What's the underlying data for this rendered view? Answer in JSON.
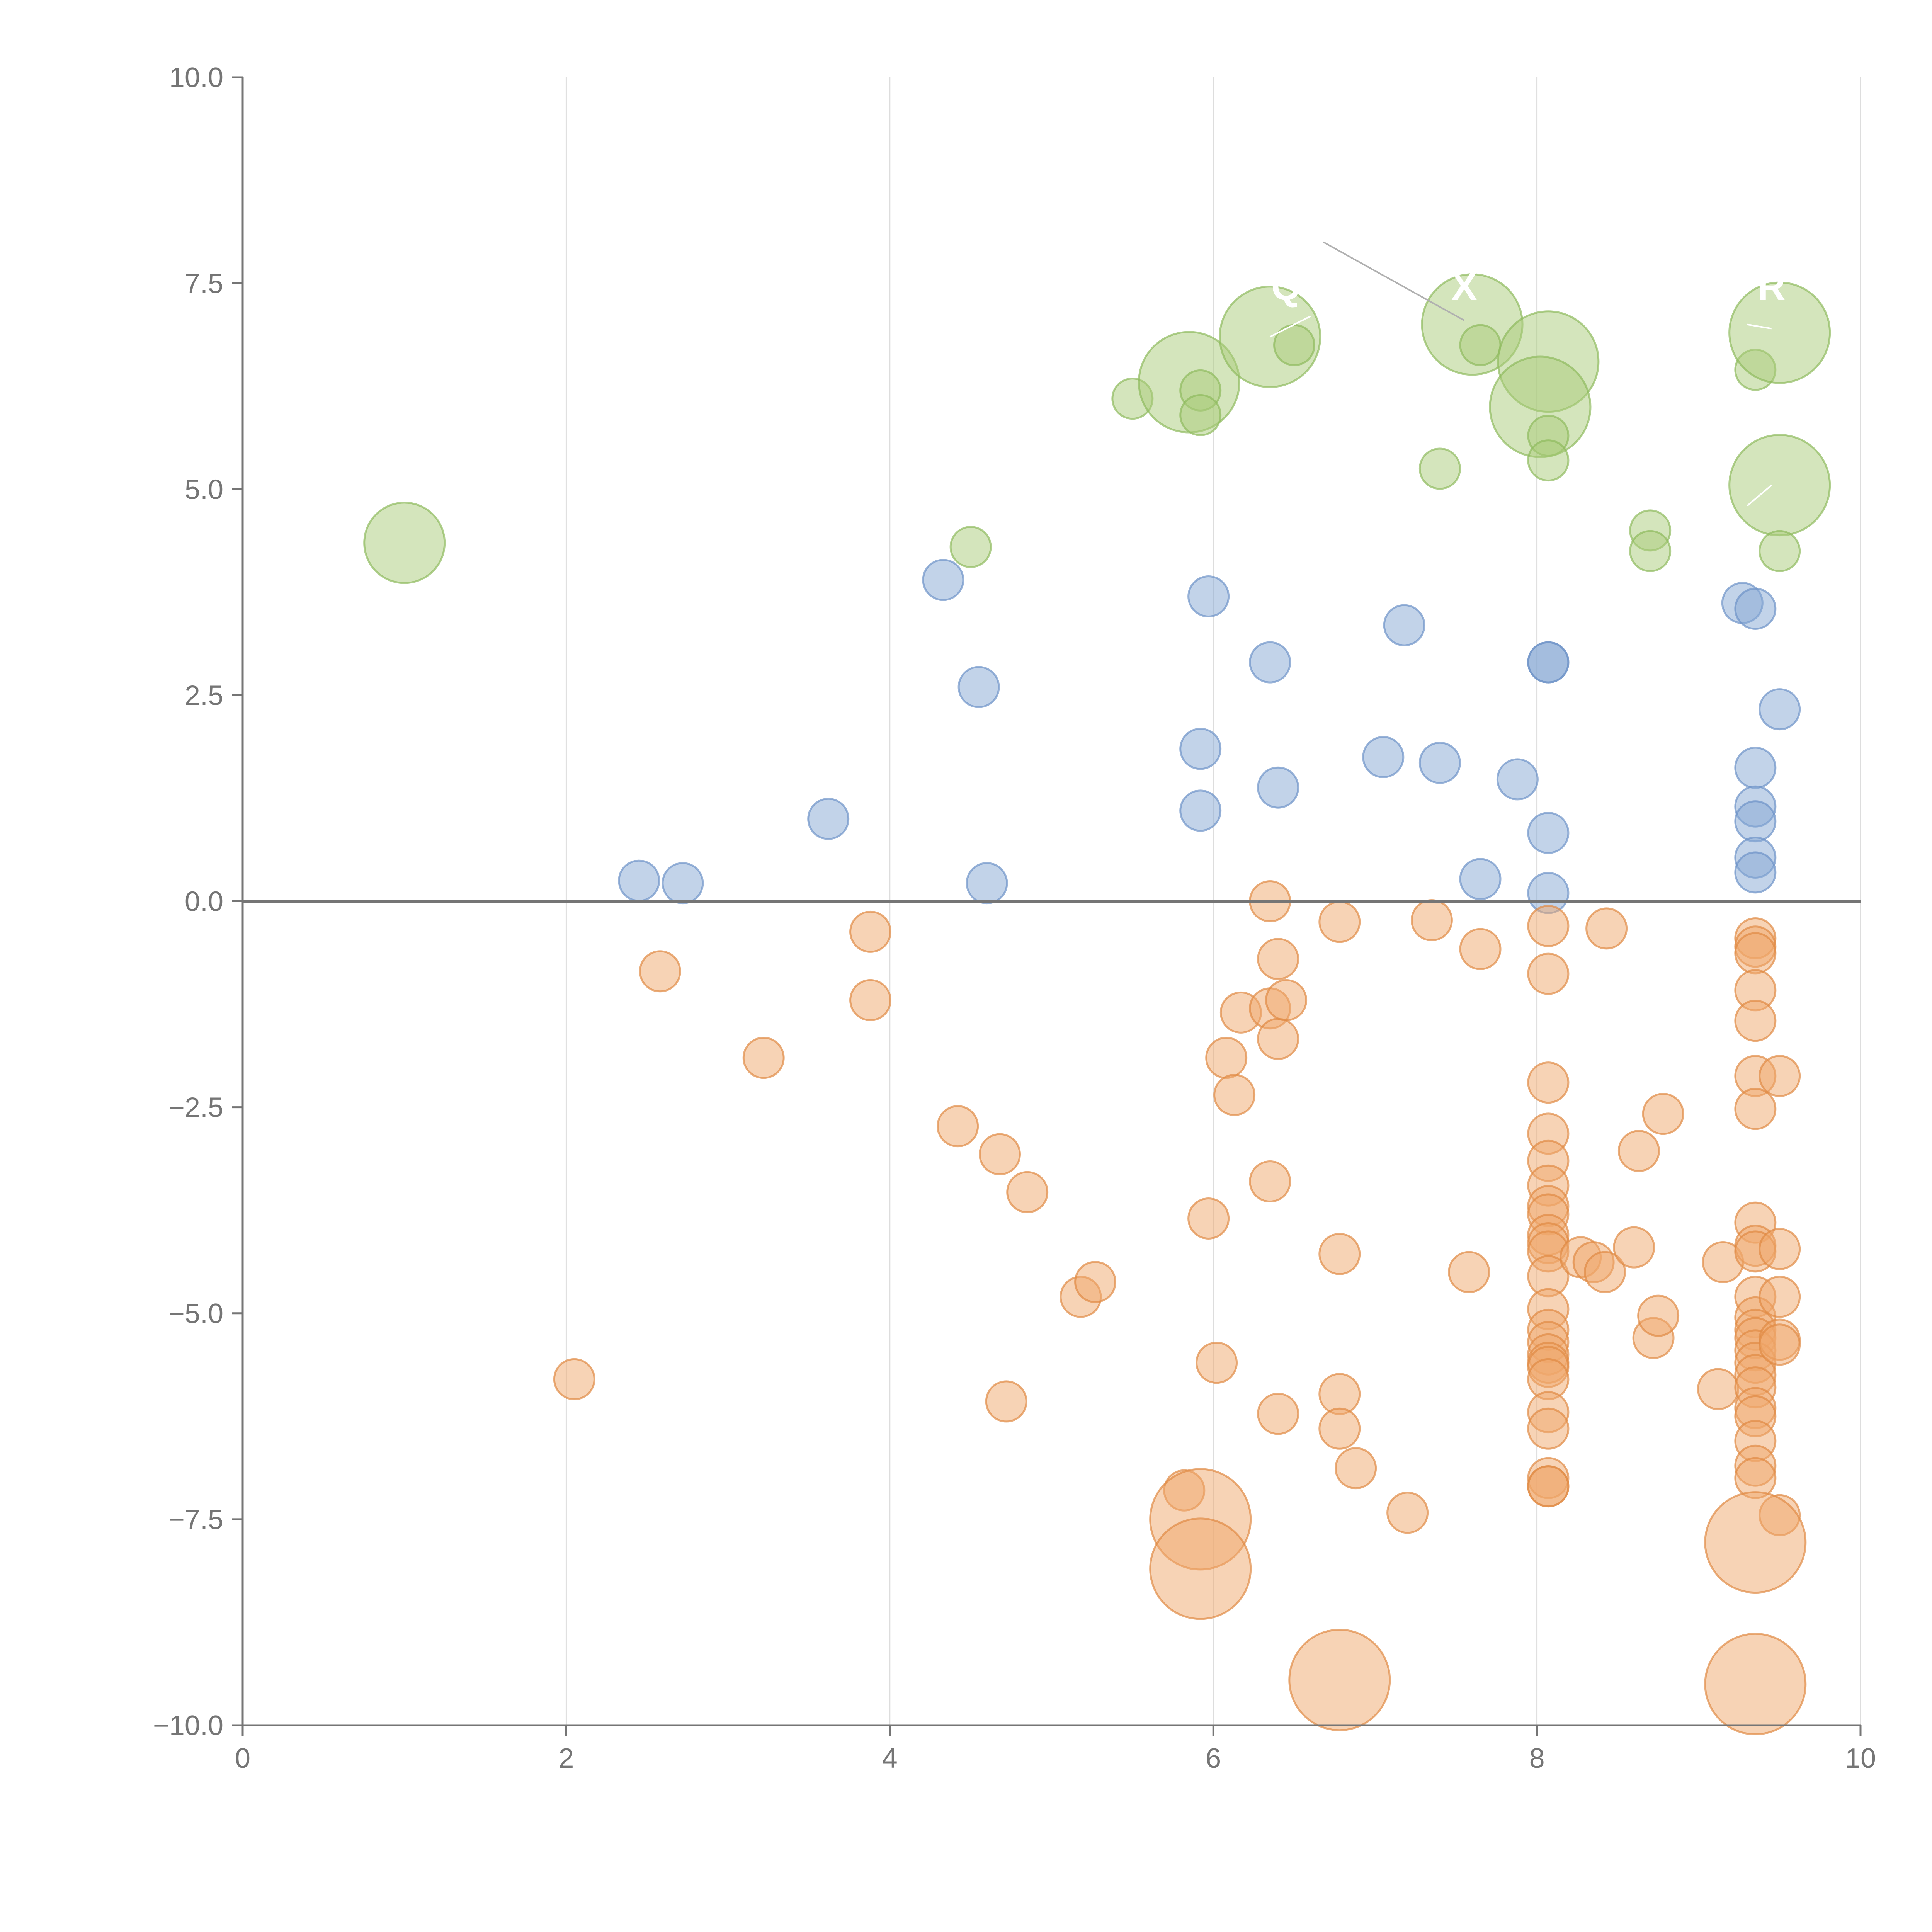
{
  "chart_data": {
    "type": "scatter",
    "title": "",
    "xlabel": "",
    "ylabel": "",
    "xlim": [
      0,
      10
    ],
    "ylim": [
      -10,
      10
    ],
    "grid": "vertical",
    "x_ticks": [
      {
        "value": 0,
        "label": "0"
      },
      {
        "value": 2,
        "label": "2"
      },
      {
        "value": 4,
        "label": "4"
      },
      {
        "value": 6,
        "label": "6"
      },
      {
        "value": 8,
        "label": "8"
      },
      {
        "value": 10,
        "label": "10"
      }
    ],
    "y_ticks": [
      {
        "value": 10,
        "label": "10.0"
      },
      {
        "value": 7.5,
        "label": "7.5"
      },
      {
        "value": 5,
        "label": "5.0"
      },
      {
        "value": 2.5,
        "label": "2.5"
      },
      {
        "value": 0,
        "label": "0.0"
      },
      {
        "value": -2.5,
        "label": "−2.5"
      },
      {
        "value": -5,
        "label": "−5.0"
      },
      {
        "value": -7.5,
        "label": "−7.5"
      },
      {
        "value": -10,
        "label": "−10.0"
      }
    ],
    "series": [
      {
        "name": "green",
        "fill": "#a9cc7a",
        "stroke": "#8fbb5e",
        "points": [
          [
            1.0,
            4.35,
            2
          ],
          [
            4.5,
            4.3,
            1
          ],
          [
            5.5,
            6.1,
            1
          ],
          [
            5.85,
            6.3,
            2.5
          ],
          [
            5.92,
            6.2,
            1
          ],
          [
            5.92,
            5.9,
            1
          ],
          [
            6.35,
            6.85,
            2.5
          ],
          [
            6.5,
            6.75,
            1
          ],
          [
            7.4,
            5.25,
            1
          ],
          [
            7.6,
            7.0,
            2.5
          ],
          [
            7.65,
            6.75,
            1
          ],
          [
            8.07,
            6.55,
            2.5
          ],
          [
            8.02,
            6.0,
            2.5
          ],
          [
            8.07,
            5.65,
            1
          ],
          [
            8.07,
            5.35,
            1
          ],
          [
            8.7,
            4.5,
            1
          ],
          [
            8.7,
            4.25,
            1
          ],
          [
            9.35,
            6.45,
            1
          ],
          [
            9.5,
            6.9,
            2.5
          ],
          [
            9.5,
            5.05,
            2.5
          ],
          [
            9.5,
            4.25,
            1
          ]
        ]
      },
      {
        "name": "blue",
        "fill": "#86a8d4",
        "stroke": "#6e93c7",
        "points": [
          [
            2.45,
            0.25,
            1
          ],
          [
            2.72,
            0.22,
            1
          ],
          [
            3.62,
            1.0,
            1
          ],
          [
            4.33,
            3.9,
            1
          ],
          [
            4.55,
            2.6,
            1
          ],
          [
            4.6,
            0.22,
            1
          ],
          [
            5.92,
            1.85,
            1
          ],
          [
            5.92,
            1.1,
            1
          ],
          [
            5.97,
            3.7,
            1
          ],
          [
            6.35,
            2.9,
            1
          ],
          [
            6.4,
            1.38,
            1
          ],
          [
            7.05,
            1.75,
            1
          ],
          [
            7.18,
            3.35,
            1
          ],
          [
            7.4,
            1.68,
            1
          ],
          [
            7.65,
            0.27,
            1
          ],
          [
            7.88,
            1.48,
            1
          ],
          [
            8.07,
            2.9,
            1
          ],
          [
            8.07,
            2.9,
            1
          ],
          [
            8.07,
            0.83,
            1
          ],
          [
            8.07,
            0.1,
            1
          ],
          [
            9.27,
            3.62,
            1
          ],
          [
            9.35,
            3.55,
            1
          ],
          [
            9.5,
            2.33,
            1
          ],
          [
            9.35,
            1.62,
            1
          ],
          [
            9.35,
            1.15,
            1
          ],
          [
            9.35,
            0.97,
            1
          ],
          [
            9.35,
            0.53,
            1
          ],
          [
            9.35,
            0.35,
            1
          ]
        ]
      },
      {
        "name": "orange",
        "fill": "#f0a86b",
        "stroke": "#e08a45",
        "points": [
          [
            2.05,
            -5.8,
            1
          ],
          [
            2.58,
            -0.85,
            1
          ],
          [
            3.22,
            -1.9,
            1
          ],
          [
            3.88,
            -0.37,
            1
          ],
          [
            3.88,
            -1.2,
            1
          ],
          [
            4.42,
            -2.73,
            1
          ],
          [
            4.68,
            -3.07,
            1
          ],
          [
            4.72,
            -6.07,
            1
          ],
          [
            4.85,
            -3.53,
            1
          ],
          [
            5.18,
            -4.8,
            1
          ],
          [
            5.27,
            -4.62,
            1
          ],
          [
            5.82,
            -7.15,
            1
          ],
          [
            5.92,
            -7.5,
            2.5
          ],
          [
            5.92,
            -8.1,
            2.5
          ],
          [
            5.97,
            -3.85,
            1
          ],
          [
            6.02,
            -5.6,
            1
          ],
          [
            6.08,
            -1.9,
            1
          ],
          [
            6.13,
            -2.35,
            1
          ],
          [
            6.17,
            -1.35,
            1
          ],
          [
            6.35,
            0.0,
            1
          ],
          [
            6.35,
            -1.3,
            1
          ],
          [
            6.35,
            -3.4,
            1
          ],
          [
            6.4,
            -0.7,
            1
          ],
          [
            6.4,
            -1.67,
            1
          ],
          [
            6.45,
            -1.2,
            1
          ],
          [
            6.4,
            -6.22,
            1
          ],
          [
            6.78,
            -0.25,
            1
          ],
          [
            6.78,
            -4.28,
            1
          ],
          [
            6.78,
            -5.98,
            1
          ],
          [
            6.78,
            -6.4,
            1
          ],
          [
            6.88,
            -6.88,
            1
          ],
          [
            6.78,
            -9.45,
            2.5
          ],
          [
            7.2,
            -7.42,
            1
          ],
          [
            7.35,
            -0.23,
            1
          ],
          [
            7.58,
            -4.5,
            1
          ],
          [
            7.65,
            -0.58,
            1
          ],
          [
            8.07,
            -0.3,
            1
          ],
          [
            8.07,
            -0.88,
            1
          ],
          [
            8.07,
            -2.2,
            1
          ],
          [
            8.07,
            -2.82,
            1
          ],
          [
            8.07,
            -3.15,
            1
          ],
          [
            8.07,
            -3.45,
            1
          ],
          [
            8.07,
            -3.7,
            1
          ],
          [
            8.07,
            -3.8,
            1
          ],
          [
            8.07,
            -4.05,
            1
          ],
          [
            8.07,
            -4.15,
            1
          ],
          [
            8.07,
            -4.25,
            1
          ],
          [
            8.07,
            -4.55,
            1
          ],
          [
            8.07,
            -4.95,
            1
          ],
          [
            8.07,
            -5.2,
            1
          ],
          [
            8.07,
            -5.35,
            1
          ],
          [
            8.07,
            -5.5,
            1
          ],
          [
            8.07,
            -5.6,
            1
          ],
          [
            8.07,
            -5.65,
            1
          ],
          [
            8.07,
            -5.8,
            1
          ],
          [
            8.07,
            -6.2,
            1
          ],
          [
            8.07,
            -6.4,
            1
          ],
          [
            8.07,
            -7.0,
            1
          ],
          [
            8.07,
            -7.1,
            1
          ],
          [
            8.07,
            -7.1,
            1
          ],
          [
            8.27,
            -4.32,
            1
          ],
          [
            8.35,
            -4.38,
            1
          ],
          [
            8.42,
            -4.5,
            1
          ],
          [
            8.43,
            -0.33,
            1
          ],
          [
            8.6,
            -4.2,
            1
          ],
          [
            8.63,
            -3.03,
            1
          ],
          [
            8.72,
            -5.3,
            1
          ],
          [
            8.75,
            -5.03,
            1
          ],
          [
            8.78,
            -2.58,
            1
          ],
          [
            9.12,
            -5.92,
            1
          ],
          [
            9.15,
            -4.38,
            1
          ],
          [
            9.35,
            -0.45,
            1
          ],
          [
            9.35,
            -0.55,
            1
          ],
          [
            9.35,
            -0.63,
            1
          ],
          [
            9.35,
            -1.08,
            1
          ],
          [
            9.35,
            -1.45,
            1
          ],
          [
            9.35,
            -2.12,
            1
          ],
          [
            9.35,
            -2.52,
            1
          ],
          [
            9.35,
            -3.9,
            1
          ],
          [
            9.35,
            -4.18,
            1
          ],
          [
            9.35,
            -4.25,
            1
          ],
          [
            9.35,
            -4.8,
            1
          ],
          [
            9.35,
            -5.05,
            1
          ],
          [
            9.35,
            -5.2,
            1
          ],
          [
            9.35,
            -5.3,
            1
          ],
          [
            9.35,
            -5.45,
            1
          ],
          [
            9.35,
            -5.6,
            1
          ],
          [
            9.35,
            -5.75,
            1
          ],
          [
            9.35,
            -5.9,
            1
          ],
          [
            9.35,
            -6.15,
            1
          ],
          [
            9.35,
            -6.25,
            1
          ],
          [
            9.35,
            -6.55,
            1
          ],
          [
            9.35,
            -6.85,
            1
          ],
          [
            9.35,
            -7.0,
            1
          ],
          [
            9.5,
            -2.12,
            1
          ],
          [
            9.5,
            -4.22,
            1
          ],
          [
            9.5,
            -4.8,
            1
          ],
          [
            9.5,
            -5.32,
            1
          ],
          [
            9.5,
            -5.38,
            1
          ],
          [
            9.5,
            -7.45,
            1
          ],
          [
            9.35,
            -7.78,
            2.5
          ],
          [
            9.35,
            -9.5,
            2.5
          ]
        ]
      }
    ],
    "annotations": [
      {
        "text": "Q",
        "x": 6.45,
        "y": 7.3,
        "from": [
          6.35,
          6.85
        ],
        "to": [
          6.6,
          7.1
        ]
      },
      {
        "text": "X",
        "x": 7.55,
        "y": 7.3,
        "from": [
          6.68,
          8.0
        ],
        "to": [
          7.55,
          7.05
        ]
      },
      {
        "text": "R",
        "x": 9.45,
        "y": 7.3,
        "from": [
          9.3,
          7.0
        ],
        "to": [
          9.45,
          6.95
        ]
      },
      {
        "text": "",
        "x": 9.45,
        "y": 5.0,
        "from": [
          9.45,
          5.05
        ],
        "to": [
          9.3,
          4.8
        ]
      }
    ]
  }
}
